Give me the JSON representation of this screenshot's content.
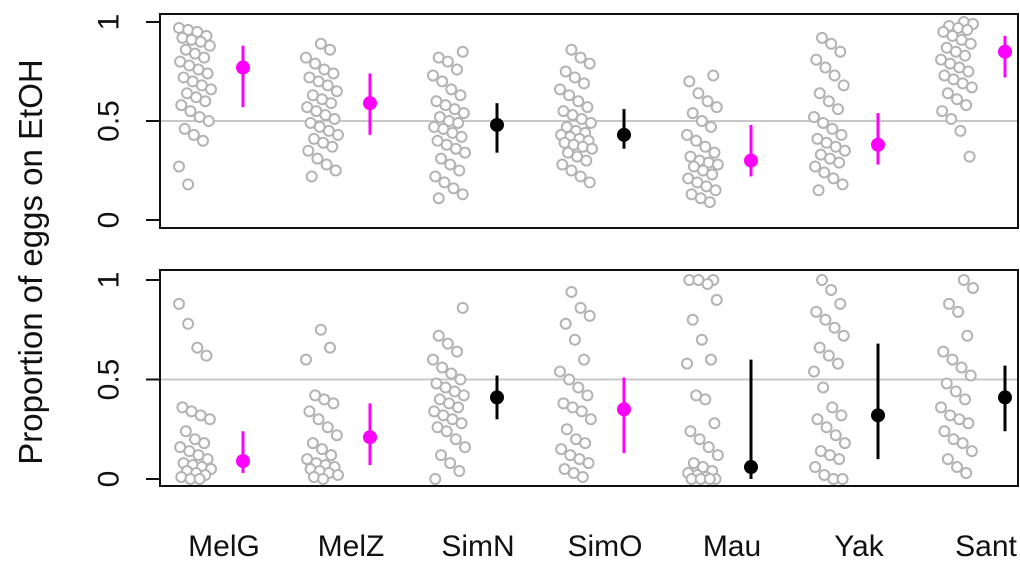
{
  "chart_data": {
    "type": "scatter",
    "ylabel": "Proportion of eggs on EtOH",
    "categories": [
      "MelG",
      "MelZ",
      "SimN",
      "SimO",
      "Mau",
      "Yak",
      "Sant"
    ],
    "yticks": [
      "0",
      "0.5",
      "1"
    ],
    "ylim": [
      0,
      1
    ],
    "reference_line": 0.5,
    "grid": false,
    "colors": {
      "points": "#b3b3b3",
      "significant": "#ff00ff",
      "not_significant": "#000000",
      "reference": "#c8c8c8"
    },
    "panels": [
      {
        "summary": [
          {
            "category": "MelG",
            "mean": 0.77,
            "low": 0.57,
            "high": 0.88,
            "significant": true
          },
          {
            "category": "MelZ",
            "mean": 0.59,
            "low": 0.43,
            "high": 0.74,
            "significant": true
          },
          {
            "category": "SimN",
            "mean": 0.48,
            "low": 0.34,
            "high": 0.59,
            "significant": false
          },
          {
            "category": "SimO",
            "mean": 0.43,
            "low": 0.36,
            "high": 0.56,
            "significant": false
          },
          {
            "category": "Mau",
            "mean": 0.3,
            "low": 0.22,
            "high": 0.48,
            "significant": true
          },
          {
            "category": "Yak",
            "mean": 0.38,
            "low": 0.28,
            "high": 0.54,
            "significant": true
          },
          {
            "category": "Sant",
            "mean": 0.85,
            "low": 0.72,
            "high": 0.93,
            "significant": true
          }
        ],
        "points": [
          [
            0.97,
            0.96,
            0.95,
            0.93,
            0.92,
            0.91,
            0.9,
            0.88,
            0.86,
            0.84,
            0.82,
            0.8,
            0.78,
            0.76,
            0.74,
            0.72,
            0.7,
            0.68,
            0.66,
            0.64,
            0.62,
            0.6,
            0.58,
            0.55,
            0.52,
            0.5,
            0.46,
            0.43,
            0.4,
            0.27,
            0.18
          ],
          [
            0.89,
            0.86,
            0.82,
            0.79,
            0.76,
            0.74,
            0.72,
            0.7,
            0.68,
            0.65,
            0.63,
            0.61,
            0.59,
            0.57,
            0.55,
            0.53,
            0.51,
            0.49,
            0.47,
            0.45,
            0.43,
            0.41,
            0.39,
            0.37,
            0.35,
            0.31,
            0.28,
            0.25,
            0.22
          ],
          [
            0.85,
            0.82,
            0.8,
            0.76,
            0.73,
            0.7,
            0.66,
            0.63,
            0.6,
            0.58,
            0.56,
            0.54,
            0.52,
            0.5,
            0.49,
            0.47,
            0.46,
            0.44,
            0.42,
            0.4,
            0.38,
            0.36,
            0.34,
            0.31,
            0.28,
            0.25,
            0.22,
            0.19,
            0.16,
            0.13,
            0.11
          ],
          [
            0.86,
            0.82,
            0.79,
            0.75,
            0.72,
            0.69,
            0.66,
            0.63,
            0.6,
            0.57,
            0.55,
            0.53,
            0.51,
            0.49,
            0.47,
            0.45,
            0.44,
            0.43,
            0.42,
            0.41,
            0.4,
            0.39,
            0.38,
            0.37,
            0.36,
            0.34,
            0.32,
            0.3,
            0.28,
            0.25,
            0.22,
            0.19
          ],
          [
            0.73,
            0.7,
            0.64,
            0.6,
            0.57,
            0.54,
            0.5,
            0.47,
            0.43,
            0.4,
            0.37,
            0.34,
            0.32,
            0.3,
            0.29,
            0.28,
            0.27,
            0.25,
            0.23,
            0.21,
            0.19,
            0.17,
            0.15,
            0.13,
            0.11,
            0.09
          ],
          [
            0.92,
            0.89,
            0.85,
            0.81,
            0.77,
            0.73,
            0.68,
            0.64,
            0.6,
            0.56,
            0.52,
            0.49,
            0.46,
            0.43,
            0.41,
            0.39,
            0.37,
            0.35,
            0.33,
            0.31,
            0.29,
            0.27,
            0.24,
            0.21,
            0.18,
            0.15
          ],
          [
            1.0,
            0.99,
            0.98,
            0.97,
            0.96,
            0.95,
            0.93,
            0.91,
            0.89,
            0.87,
            0.85,
            0.83,
            0.81,
            0.79,
            0.77,
            0.75,
            0.73,
            0.71,
            0.69,
            0.67,
            0.64,
            0.61,
            0.58,
            0.55,
            0.51,
            0.45,
            0.32
          ]
        ]
      },
      {
        "summary": [
          {
            "category": "MelG",
            "mean": 0.09,
            "low": 0.03,
            "high": 0.24,
            "significant": true
          },
          {
            "category": "MelZ",
            "mean": 0.21,
            "low": 0.07,
            "high": 0.38,
            "significant": true
          },
          {
            "category": "SimN",
            "mean": 0.41,
            "low": 0.3,
            "high": 0.52,
            "significant": false
          },
          {
            "category": "SimO",
            "mean": 0.35,
            "low": 0.13,
            "high": 0.51,
            "significant": true
          },
          {
            "category": "Mau",
            "mean": 0.06,
            "low": 0.0,
            "high": 0.6,
            "significant": false
          },
          {
            "category": "Yak",
            "mean": 0.32,
            "low": 0.1,
            "high": 0.68,
            "significant": false
          },
          {
            "category": "Sant",
            "mean": 0.41,
            "low": 0.24,
            "high": 0.57,
            "significant": false
          }
        ],
        "points": [
          [
            0.88,
            0.78,
            0.66,
            0.62,
            0.36,
            0.34,
            0.32,
            0.3,
            0.24,
            0.2,
            0.18,
            0.16,
            0.14,
            0.12,
            0.1,
            0.08,
            0.07,
            0.06,
            0.05,
            0.04,
            0.03,
            0.02,
            0.01,
            0.0,
            0.0
          ],
          [
            0.75,
            0.66,
            0.6,
            0.42,
            0.4,
            0.38,
            0.34,
            0.3,
            0.26,
            0.22,
            0.18,
            0.15,
            0.12,
            0.1,
            0.08,
            0.07,
            0.06,
            0.05,
            0.04,
            0.03,
            0.02,
            0.01,
            0.0
          ],
          [
            0.86,
            0.72,
            0.68,
            0.64,
            0.6,
            0.56,
            0.53,
            0.5,
            0.48,
            0.46,
            0.44,
            0.42,
            0.4,
            0.38,
            0.36,
            0.34,
            0.32,
            0.3,
            0.28,
            0.26,
            0.24,
            0.2,
            0.16,
            0.12,
            0.08,
            0.04,
            0.0
          ],
          [
            0.94,
            0.86,
            0.82,
            0.78,
            0.7,
            0.6,
            0.54,
            0.5,
            0.46,
            0.42,
            0.38,
            0.36,
            0.34,
            0.3,
            0.25,
            0.2,
            0.18,
            0.15,
            0.12,
            0.1,
            0.08,
            0.05,
            0.03,
            0.01
          ],
          [
            1.0,
            1.0,
            1.0,
            0.98,
            0.9,
            0.8,
            0.7,
            0.6,
            0.58,
            0.42,
            0.4,
            0.28,
            0.24,
            0.2,
            0.16,
            0.12,
            0.08,
            0.06,
            0.04,
            0.03,
            0.02,
            0.01,
            0.0,
            0.0,
            0.0,
            0.0
          ],
          [
            1.0,
            0.95,
            0.88,
            0.84,
            0.8,
            0.76,
            0.72,
            0.66,
            0.62,
            0.58,
            0.54,
            0.46,
            0.36,
            0.32,
            0.3,
            0.26,
            0.22,
            0.18,
            0.14,
            0.12,
            0.1,
            0.06,
            0.02,
            0.0,
            0.0
          ],
          [
            1.0,
            0.96,
            0.88,
            0.84,
            0.72,
            0.64,
            0.6,
            0.56,
            0.52,
            0.48,
            0.44,
            0.4,
            0.36,
            0.32,
            0.3,
            0.28,
            0.24,
            0.2,
            0.18,
            0.14,
            0.1,
            0.06,
            0.03
          ]
        ]
      }
    ]
  }
}
